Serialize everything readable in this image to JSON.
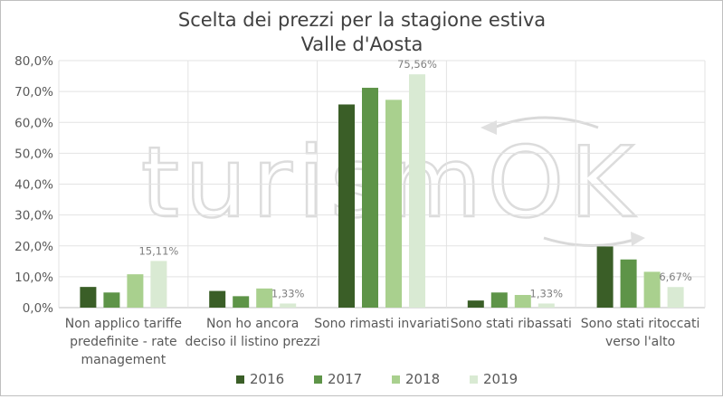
{
  "chart_data": {
    "type": "bar",
    "title": "Scelta dei prezzi per la stagione estiva",
    "subtitle": "Valle d'Aosta",
    "watermark": "turismOK",
    "categories": [
      [
        "Non applico tariffe",
        "predefinite - rate",
        "management"
      ],
      [
        "Non ho ancora",
        "deciso il listino prezzi"
      ],
      [
        "Sono rimasti invariati"
      ],
      [
        "Sono stati ribassati"
      ],
      [
        "Sono stati ritoccati",
        "verso l'alto"
      ]
    ],
    "series": [
      {
        "name": "2016",
        "color": "#3a5e27",
        "values": [
          6.7,
          5.4,
          65.8,
          2.3,
          19.8
        ]
      },
      {
        "name": "2017",
        "color": "#5e9448",
        "values": [
          4.9,
          3.7,
          71.2,
          4.9,
          15.6
        ]
      },
      {
        "name": "2018",
        "color": "#a9d08e",
        "values": [
          10.8,
          6.2,
          67.3,
          4.1,
          11.6
        ]
      },
      {
        "name": "2019",
        "color": "#d9ead3",
        "values": [
          15.11,
          1.33,
          75.56,
          1.33,
          6.67
        ]
      }
    ],
    "data_labels": {
      "series": "2019",
      "labels": [
        "15,11%",
        "1,33%",
        "75,56%",
        "1,33%",
        "6,67%"
      ]
    },
    "ylim": [
      0,
      80
    ],
    "yticks": [
      0,
      10,
      20,
      30,
      40,
      50,
      60,
      70,
      80
    ],
    "ytick_labels": [
      "0,0%",
      "10,0%",
      "20,0%",
      "30,0%",
      "40,0%",
      "50,0%",
      "60,0%",
      "70,0%",
      "80,0%"
    ],
    "grid": true,
    "legend_position": "bottom"
  }
}
